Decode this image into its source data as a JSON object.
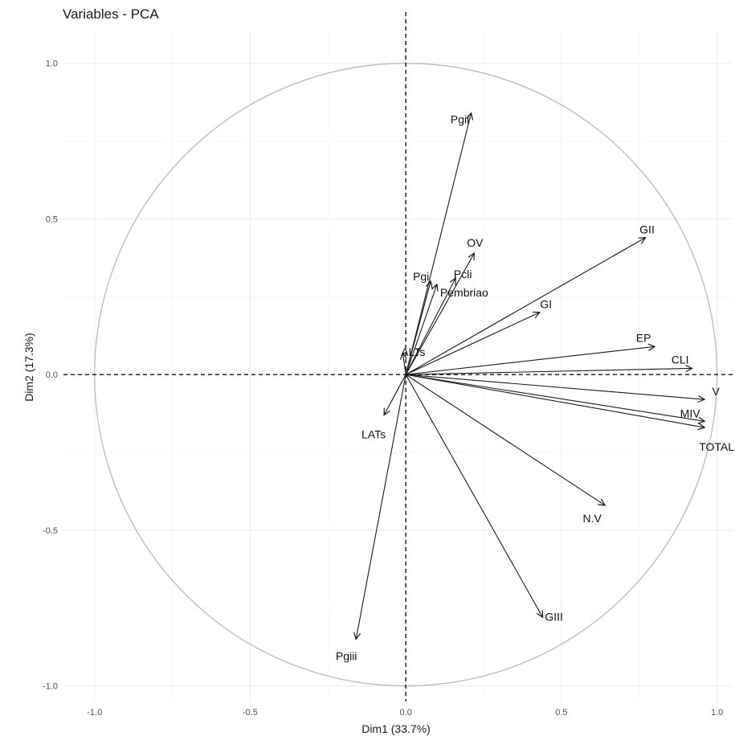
{
  "chart_data": {
    "type": "scatter",
    "subtype": "pca-variable-correlation-circle",
    "title": "Variables - PCA",
    "xlabel": "Dim1 (33.7%)",
    "ylabel": "Dim2 (17.3%)",
    "xlim": [
      -1.1,
      1.05
    ],
    "ylim": [
      -1.05,
      1.1
    ],
    "x_ticks": [
      {
        "value": -1.0,
        "label": "-1.0"
      },
      {
        "value": -0.5,
        "label": "-0.5"
      },
      {
        "value": 0.0,
        "label": "0.0"
      },
      {
        "value": 0.5,
        "label": "0.5"
      },
      {
        "value": 1.0,
        "label": "1.0"
      }
    ],
    "y_ticks": [
      {
        "value": 1.0,
        "label": "1.0"
      },
      {
        "value": 0.5,
        "label": "0.5"
      },
      {
        "value": 0.0,
        "label": "0.0"
      },
      {
        "value": -0.5,
        "label": "-0.5"
      },
      {
        "value": -1.0,
        "label": "-1.0"
      }
    ],
    "grid": true,
    "unit_circle": true,
    "reference_lines": "dashed x=0 and y=0",
    "variables": [
      {
        "name": "Pgii",
        "x": 0.21,
        "y": 0.84
      },
      {
        "name": "GII",
        "x": 0.77,
        "y": 0.44
      },
      {
        "name": "OV",
        "x": 0.22,
        "y": 0.39
      },
      {
        "name": "Pcli",
        "x": 0.16,
        "y": 0.31
      },
      {
        "name": "Pgi",
        "x": 0.08,
        "y": 0.3
      },
      {
        "name": "Pembriao",
        "x": 0.1,
        "y": 0.29
      },
      {
        "name": "GI",
        "x": 0.43,
        "y": 0.2
      },
      {
        "name": "ALTs",
        "x": -0.01,
        "y": 0.07
      },
      {
        "name": "EP",
        "x": 0.8,
        "y": 0.09
      },
      {
        "name": "CLI",
        "x": 0.92,
        "y": 0.02
      },
      {
        "name": "V",
        "x": 0.96,
        "y": -0.08
      },
      {
        "name": "MIV",
        "x": 0.96,
        "y": -0.15
      },
      {
        "name": "TOTAL",
        "x": 0.96,
        "y": -0.17
      },
      {
        "name": "LATs",
        "x": -0.07,
        "y": -0.13
      },
      {
        "name": "N.V",
        "x": 0.64,
        "y": -0.42
      },
      {
        "name": "GIII",
        "x": 0.44,
        "y": -0.78
      },
      {
        "name": "Pgiii",
        "x": -0.16,
        "y": -0.85
      }
    ],
    "colors": {
      "arrow": "#1a1a1a",
      "circle": "#bdbdbd",
      "reference": "#111111"
    }
  }
}
